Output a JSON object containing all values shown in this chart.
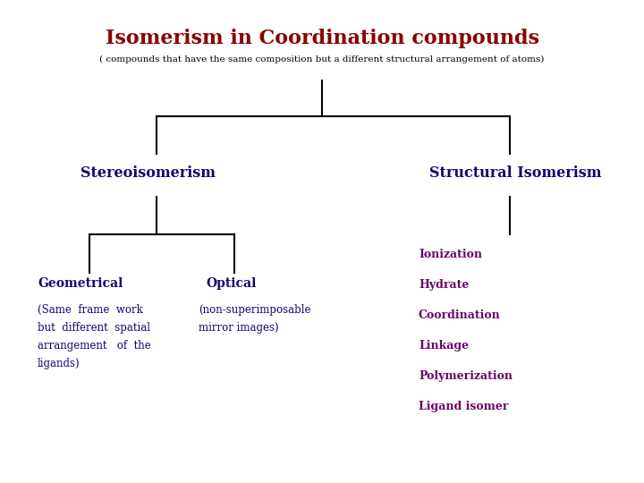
{
  "title": "Isomerism in Coordination compounds",
  "title_color": "#8B0000",
  "title_fontsize": 16,
  "subtitle": "( compounds that have the same composition but a different structural arrangement of atoms)",
  "subtitle_color": "#000000",
  "subtitle_fontsize": 7.5,
  "bg_color": "#ffffff",
  "node_color_stereo": "#1a0070",
  "node_color_structural": "#1a0070",
  "node_color_geo": "#1a0070",
  "node_color_optical": "#1a0070",
  "node_color_list": "#6B006B",
  "line_color": "#000000",
  "stereo_label": "Stereoisomerism",
  "structural_label": "Structural Isomerism",
  "geo_label": "Geometrical",
  "optical_label": "Optical",
  "geo_desc": "(Same  frame  work\nbut  different  spatial\narrangement   of  the\nligands)",
  "optical_desc": "(non-superimposable\nmirror images)",
  "structural_items": [
    "Ionization",
    "Hydrate",
    "Coordination",
    "Linkage",
    "Polymerization",
    "Ligand isomer"
  ]
}
